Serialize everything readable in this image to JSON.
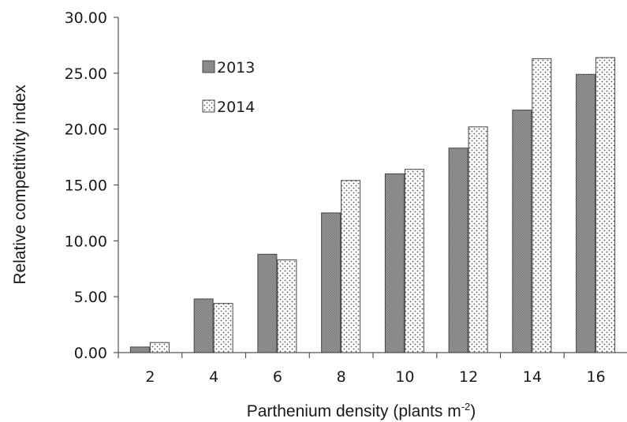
{
  "chart_data": {
    "type": "bar",
    "categories": [
      "2",
      "4",
      "6",
      "8",
      "10",
      "12",
      "14",
      "16"
    ],
    "series": [
      {
        "name": "2013",
        "values": [
          0.5,
          4.8,
          8.8,
          12.5,
          16.0,
          18.3,
          21.7,
          24.9
        ],
        "color": "#8c8c8c",
        "pattern": "hatched-gray"
      },
      {
        "name": "2014",
        "values": [
          0.9,
          4.4,
          8.3,
          15.4,
          16.4,
          20.2,
          26.3,
          26.4
        ],
        "color": "#ffffff",
        "pattern": "dotted"
      }
    ],
    "xlabel": "Parthenium density (plants m",
    "xlabel_sup": "-2",
    "xlabel_end": ")",
    "ylabel": "Relative competitivity index",
    "ylim": [
      0,
      30
    ],
    "yticks": [
      "0.00",
      "5.00",
      "10.00",
      "15.00",
      "20.00",
      "25.00",
      "30.00"
    ],
    "legend_position": "top-left",
    "grid": false
  }
}
